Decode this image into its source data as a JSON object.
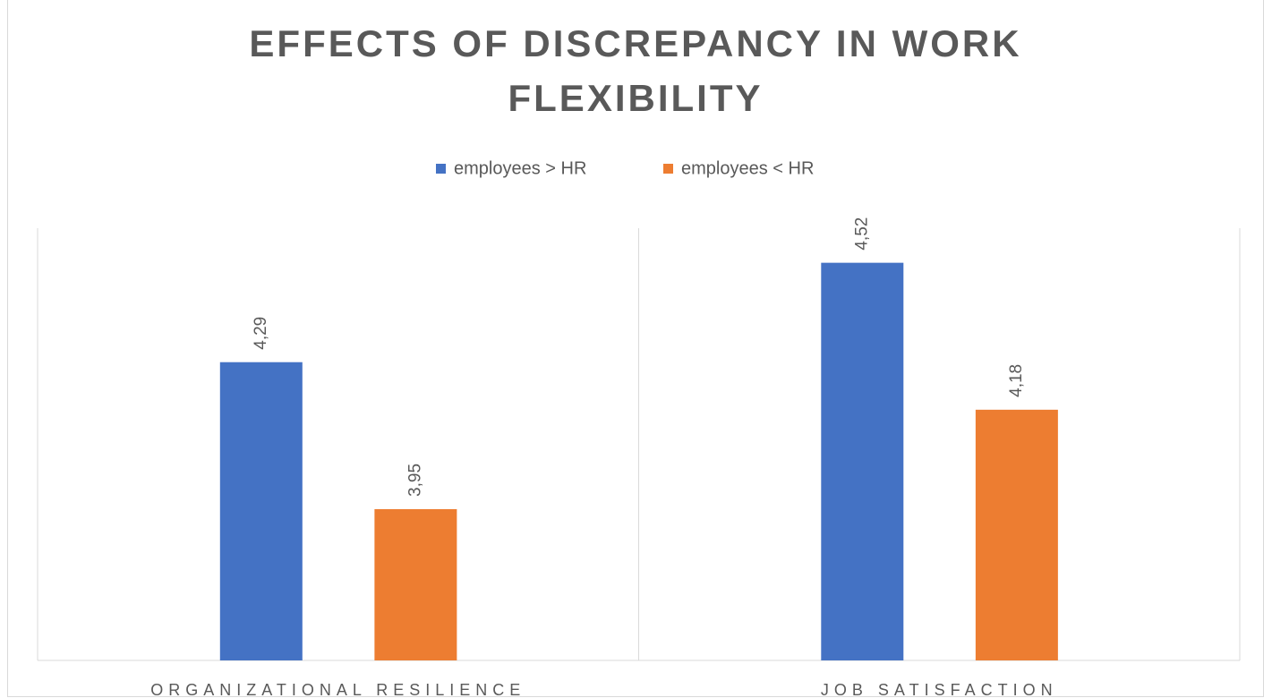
{
  "chart_data": {
    "type": "bar",
    "title": "EFFECTS OF DISCREPANCY IN WORK FLEXIBILITY",
    "categories": [
      "ORGANIZATIONAL RESILIENCE",
      "JOB SATISFACTION"
    ],
    "series": [
      {
        "name": "employees > HR",
        "color": "#4472c4",
        "values": [
          4.29,
          4.52
        ],
        "value_labels": [
          "4,29",
          "4,52"
        ]
      },
      {
        "name": "employees < HR",
        "color": "#ed7d31",
        "values": [
          3.95,
          4.18
        ],
        "value_labels": [
          "3,95",
          "4,18"
        ]
      }
    ],
    "ylim": [
      3.6,
      4.6
    ],
    "legend": "top"
  }
}
